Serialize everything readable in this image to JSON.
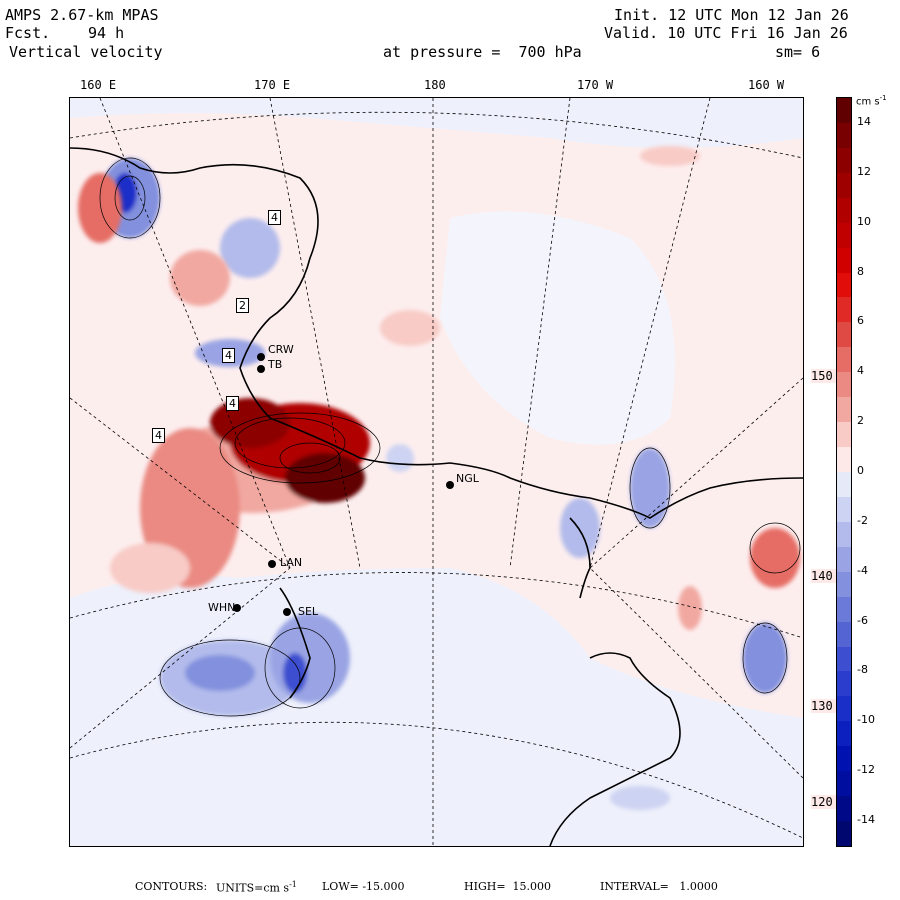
{
  "header": {
    "model": "AMPS 2.67-km MPAS",
    "fcst_label": "Fcst.",
    "fcst_value": "94 h",
    "field": "Vertical velocity",
    "init": "Init. 12 UTC Mon 12 Jan 26",
    "valid": "Valid. 10 UTC Fri 16 Jan 26",
    "pressure": "at pressure =  700 hPa",
    "smoothing": "sm= 6"
  },
  "longitude_labels": [
    "160 E",
    "170 E",
    "180",
    "170 W",
    "160 W"
  ],
  "latitude_labels": [
    "150 W",
    "140 W",
    "130 W",
    "120 W"
  ],
  "stations": [
    {
      "name": "CRW"
    },
    {
      "name": "TB"
    },
    {
      "name": "NGL"
    },
    {
      "name": "LAN"
    },
    {
      "name": "WHN"
    },
    {
      "name": "SEL"
    }
  ],
  "contour_boxes": [
    "4",
    "2",
    "4",
    "4",
    "4"
  ],
  "colorbar": {
    "units": "cm s",
    "units_exp": "-1",
    "levels": [
      -15,
      -14,
      -13,
      -12,
      -11,
      -10,
      -9,
      -8,
      -7,
      -6,
      -5,
      -4,
      -3,
      -2,
      -1,
      0,
      1,
      2,
      3,
      4,
      5,
      6,
      7,
      8,
      9,
      10,
      11,
      12,
      13,
      14,
      15
    ],
    "tick_labels": [
      "14",
      "12",
      "10",
      "8",
      "6",
      "4",
      "2",
      "0",
      "-2",
      "-4",
      "-6",
      "-8",
      "-10",
      "-12",
      "-14"
    ],
    "tick_values": [
      14,
      12,
      10,
      8,
      6,
      4,
      2,
      0,
      -2,
      -4,
      -6,
      -8,
      -10,
      -12,
      -14
    ],
    "colors_positive": [
      "#fde9e7",
      "#f8cbc6",
      "#f1a8a1",
      "#ea8a82",
      "#e56d65",
      "#e04a44",
      "#e02a25",
      "#e00d0a",
      "#d00000",
      "#c00000",
      "#b00000",
      "#9e0000",
      "#8c0000",
      "#780000",
      "#600000"
    ],
    "colors_negative": [
      "#e6e9f8",
      "#cdd3f2",
      "#b2bbeb",
      "#9aa4e4",
      "#8290de",
      "#6b7ad8",
      "#5465d3",
      "#3d4fd0",
      "#2a3dcc",
      "#1a2ec8",
      "#0c20c0",
      "#0012b0",
      "#000ea0",
      "#000a88",
      "#000870"
    ]
  },
  "footer": {
    "contours": "CONTOURS:",
    "units_label": "UNITS=cm s",
    "units_exp": "-1",
    "low": "LOW= -15.000",
    "high": "HIGH=  15.000",
    "interval": "INTERVAL=   1.0000"
  }
}
